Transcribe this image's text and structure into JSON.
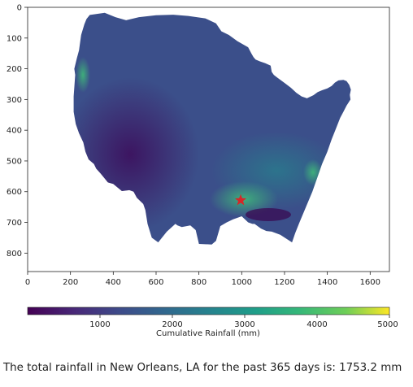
{
  "chart_data": {
    "type": "heatmap",
    "title": "",
    "xlabel": "",
    "ylabel": "",
    "x_ticks": [
      0,
      200,
      400,
      600,
      800,
      1000,
      1200,
      1400,
      1600
    ],
    "y_ticks": [
      0,
      100,
      200,
      300,
      400,
      500,
      600,
      700,
      800
    ],
    "xlim": [
      0,
      1690
    ],
    "ylim": [
      860,
      0
    ],
    "grid": false,
    "colormap": "viridis",
    "colorbar": {
      "label": "Cumulative Rainfall (mm)",
      "ticks": [
        1000,
        2000,
        3000,
        4000,
        5000
      ],
      "range": [
        0,
        5000
      ],
      "orientation": "horizontal"
    },
    "marker": {
      "symbol": "star",
      "color": "#d62728",
      "x": 995,
      "y": 628,
      "label": "New Orleans, LA"
    },
    "map_region": "contiguous United States",
    "colors": {
      "viridis_low": "#440154",
      "viridis_mid": "#21918c",
      "viridis_high": "#fde725",
      "marker": "#d62728"
    }
  },
  "output": {
    "text": "The total rainfall in New Orleans, LA for the past 365 days is: 1753.2 mm"
  }
}
